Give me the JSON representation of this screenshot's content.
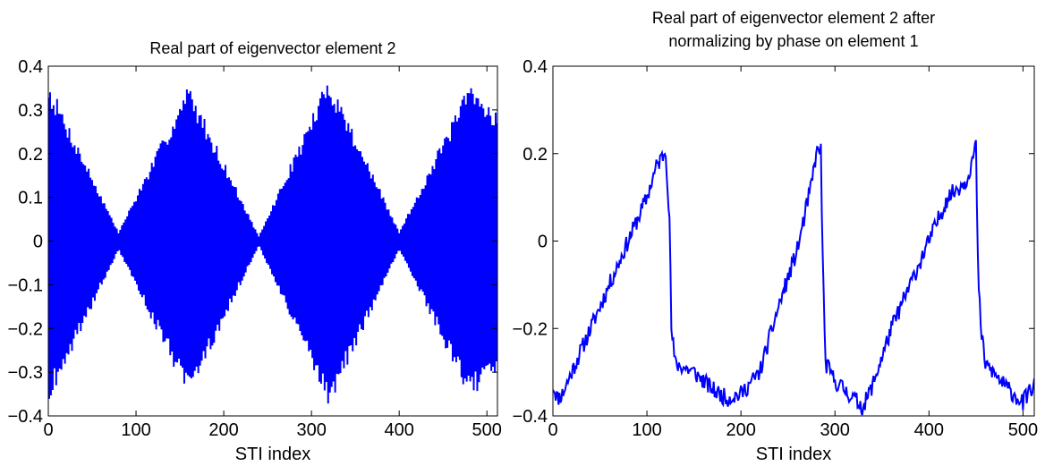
{
  "chart_data": [
    {
      "type": "line",
      "title": "Real part of eigenvector element 2",
      "title_lines": [
        "Real part of eigenvector element 2"
      ],
      "xlabel": "STI index",
      "ylabel": "",
      "xlim": [
        0,
        512
      ],
      "ylim": [
        -0.4,
        0.4
      ],
      "xticks": [
        0,
        100,
        200,
        300,
        400,
        500
      ],
      "yticks": [
        -0.4,
        -0.3,
        -0.2,
        -0.1,
        0,
        0.1,
        0.2,
        0.3,
        0.4
      ],
      "ytick_labels": [
        "−0.4",
        "−0.3",
        "−0.2",
        "−0.1",
        "0",
        "0.1",
        "0.2",
        "0.3",
        "0.4"
      ],
      "xtick_labels": [
        "0",
        "100",
        "200",
        "300",
        "400",
        "500"
      ],
      "grid": false,
      "color": "#0000ff",
      "series": [
        {
          "values_description": "oscillating signal, envelope approx 0.37*|cos(pi*x/160)|, alternating sign each sample",
          "envelope_nodes_x": [
            0,
            80,
            160,
            240,
            320,
            400,
            480,
            512
          ],
          "envelope_nodes_y": [
            0.37,
            0.02,
            0.36,
            0.01,
            0.38,
            0.02,
            0.36,
            0.3
          ]
        }
      ]
    },
    {
      "type": "line",
      "title": "Real part of eigenvector element 2 after normalizing by phase on element 1",
      "title_lines": [
        "Real part of eigenvector element 2 after",
        "normalizing by phase on element 1"
      ],
      "xlabel": "STI index",
      "ylabel": "",
      "xlim": [
        0,
        512
      ],
      "ylim": [
        -0.4,
        0.4
      ],
      "xticks": [
        0,
        100,
        200,
        300,
        400,
        500
      ],
      "yticks": [
        -0.4,
        -0.2,
        0,
        0.2,
        0.4
      ],
      "ytick_labels": [
        "−0.4",
        "−0.2",
        "0",
        "0.2",
        "0.4"
      ],
      "xtick_labels": [
        "0",
        "100",
        "200",
        "300",
        "400",
        "500"
      ],
      "grid": false,
      "color": "#0000ff",
      "series": [
        {
          "x": [
            0,
            5,
            10,
            20,
            40,
            60,
            80,
            100,
            110,
            118,
            120,
            124,
            126,
            130,
            150,
            170,
            185,
            200,
            220,
            240,
            260,
            275,
            280,
            285,
            287,
            290,
            300,
            320,
            330,
            340,
            360,
            380,
            400,
            420,
            440,
            448,
            450,
            452,
            455,
            460,
            480,
            500,
            505,
            512
          ],
          "y": [
            -0.33,
            -0.36,
            -0.35,
            -0.3,
            -0.2,
            -0.1,
            0.0,
            0.1,
            0.17,
            0.2,
            0.21,
            0.05,
            -0.2,
            -0.28,
            -0.3,
            -0.34,
            -0.36,
            -0.35,
            -0.3,
            -0.15,
            -0.02,
            0.13,
            0.2,
            0.21,
            -0.05,
            -0.28,
            -0.32,
            -0.36,
            -0.38,
            -0.33,
            -0.2,
            -0.1,
            0.0,
            0.1,
            0.14,
            0.2,
            0.22,
            -0.05,
            -0.2,
            -0.28,
            -0.33,
            -0.37,
            -0.35,
            -0.33
          ]
        }
      ]
    }
  ]
}
